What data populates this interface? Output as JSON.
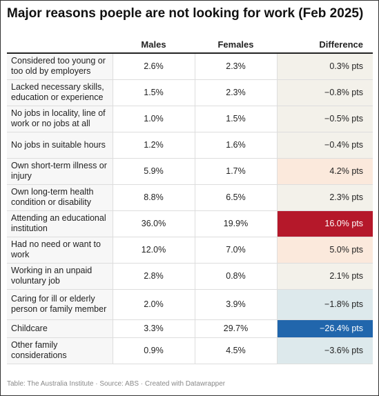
{
  "title": "Major reasons poeple are not looking for work (Feb 2025)",
  "source": "Table: The Australia Institute · Source: ABS · Created with Datawrapper",
  "colors": {
    "pos_light": "#fbe9dc",
    "pos_strong": "#b5182a",
    "neg_light": "#dde9ec",
    "neg_strong": "#2166ac",
    "neutral": "#f3f1ea"
  },
  "chart_data": {
    "type": "table",
    "columns": [
      "",
      "Males",
      "Females",
      "Difference"
    ],
    "rows": [
      {
        "reason": "Considered too young or too old by employers",
        "males": "2.6%",
        "females": "2.3%",
        "difference": "0.3% pts",
        "difference_value": 0.3
      },
      {
        "reason": "Lacked necessary skills, education or experience",
        "males": "1.5%",
        "females": "2.3%",
        "difference": "−0.8% pts",
        "difference_value": -0.8
      },
      {
        "reason": "No jobs in locality, line of work or no jobs at all",
        "males": "1.0%",
        "females": "1.5%",
        "difference": "−0.5% pts",
        "difference_value": -0.5
      },
      {
        "reason": "No jobs in suitable hours",
        "males": "1.2%",
        "females": "1.6%",
        "difference": "−0.4% pts",
        "difference_value": -0.4
      },
      {
        "reason": "Own short-term illness or injury",
        "males": "5.9%",
        "females": "1.7%",
        "difference": "4.2% pts",
        "difference_value": 4.2
      },
      {
        "reason": "Own long-term health condition or disability",
        "males": "8.8%",
        "females": "6.5%",
        "difference": "2.3% pts",
        "difference_value": 2.3
      },
      {
        "reason": "Attending an educational institution",
        "males": "36.0%",
        "females": "19.9%",
        "difference": "16.0% pts",
        "difference_value": 16.0
      },
      {
        "reason": "Had no need or want to work",
        "males": "12.0%",
        "females": "7.0%",
        "difference": "5.0% pts",
        "difference_value": 5.0
      },
      {
        "reason": "Working in an unpaid voluntary job",
        "males": "2.8%",
        "females": "0.8%",
        "difference": "2.1% pts",
        "difference_value": 2.1
      },
      {
        "reason": "Caring for ill or elderly person or family member",
        "males": "2.0%",
        "females": "3.9%",
        "difference": "−1.8% pts",
        "difference_value": -1.8
      },
      {
        "reason": "Childcare",
        "males": "3.3%",
        "females": "29.7%",
        "difference": "−26.4% pts",
        "difference_value": -26.4
      },
      {
        "reason": "Other family considerations",
        "males": "0.9%",
        "females": "4.5%",
        "difference": "−3.6% pts",
        "difference_value": -3.6
      }
    ]
  }
}
